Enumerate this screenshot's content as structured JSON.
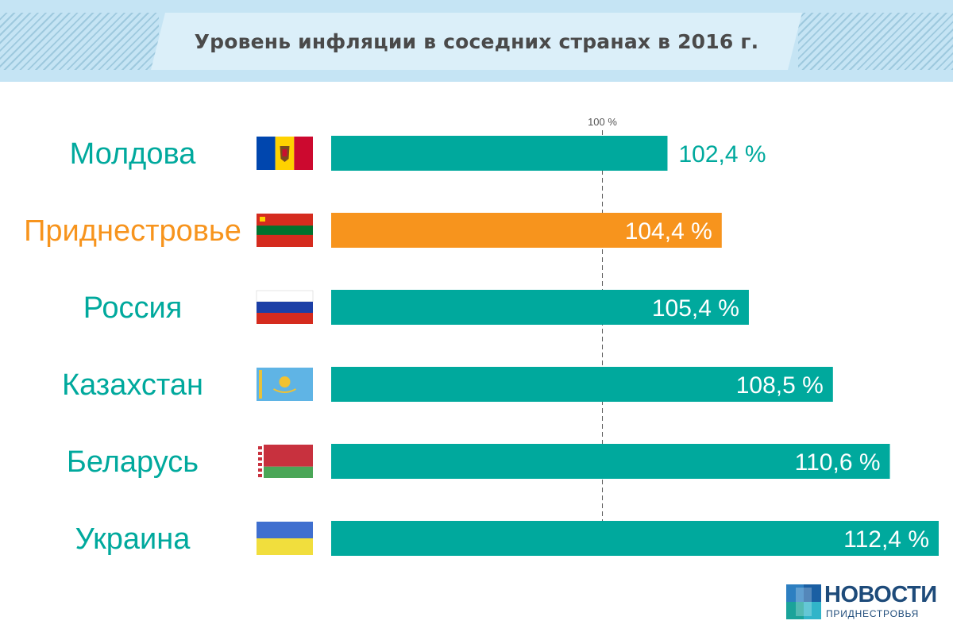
{
  "header": {
    "title": "Уровень инфляции в соседних странах в 2016 г."
  },
  "chart_data": {
    "type": "bar",
    "orientation": "horizontal",
    "title": "Уровень инфляции в соседних странах в 2016 г.",
    "categories": [
      "Молдова",
      "Приднестровье",
      "Россия",
      "Казахстан",
      "Беларусь",
      "Украина"
    ],
    "values": [
      102.4,
      104.4,
      105.4,
      108.5,
      110.6,
      112.4
    ],
    "value_labels": [
      "102,4 %",
      "104,4 %",
      "105,4 %",
      "108,5 %",
      "110,6 %",
      "112,4 %"
    ],
    "reference_line": {
      "value": 100,
      "label": "100 %"
    },
    "xlim": [
      90,
      112.4
    ],
    "highlight_index": 1,
    "flags": [
      "moldova-flag-icon",
      "transnistria-flag-icon",
      "russia-flag-icon",
      "kazakhstan-flag-icon",
      "belarus-flag-icon",
      "ukraine-flag-icon"
    ],
    "colors": {
      "bar": "#00a99d",
      "highlight": "#f7941d",
      "label": "#00a99d",
      "value_on_bar": "#ffffff"
    }
  },
  "logo": {
    "main": "НОВОСТИ",
    "sub": "ПРИДНЕСТРОВЬЯ"
  }
}
